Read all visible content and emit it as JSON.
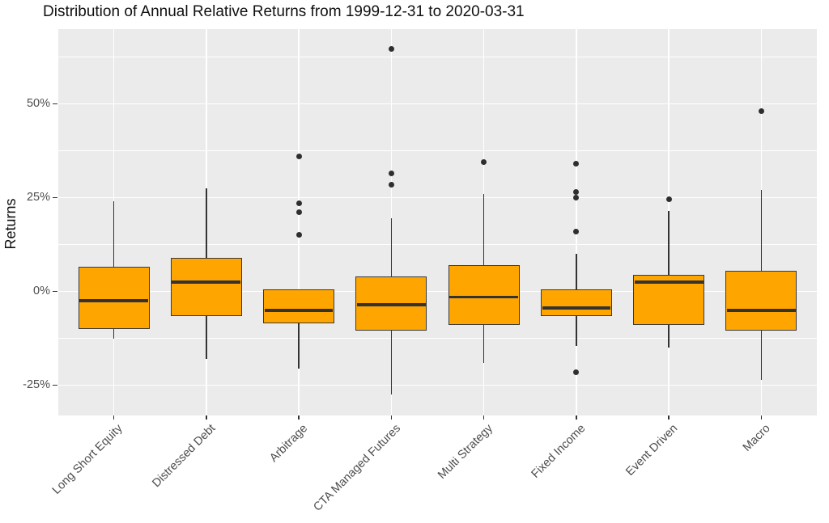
{
  "chart_data": {
    "type": "boxplot",
    "title": "Distribution of Annual Relative Returns from 1999-12-31 to 2020-03-31",
    "xlabel": "",
    "ylabel": "Returns",
    "ylim": [
      -33,
      70
    ],
    "grid": "on",
    "legend": "none",
    "yticks": [
      {
        "value": 50,
        "label": "50%"
      },
      {
        "value": 25,
        "label": "25%"
      },
      {
        "value": 0,
        "label": "0%"
      },
      {
        "value": -25,
        "label": "-25%"
      }
    ],
    "minor_gridline_values": [
      62.5,
      37.5,
      12.5,
      -12.5
    ],
    "categories": [
      "Long Short Equity",
      "Distressed Debt",
      "Arbitrage",
      "CTA Managed Futures",
      "Multi Strategy",
      "Fixed Income",
      "Event Driven",
      "Macro"
    ],
    "series": [
      {
        "category": "Long Short Equity",
        "whisker_low": -12.5,
        "q1": -10,
        "median": -2.5,
        "q3": 6.5,
        "whisker_high": 24,
        "outliers": []
      },
      {
        "category": "Distressed Debt",
        "whisker_low": -18,
        "q1": -6.5,
        "median": 2.5,
        "q3": 9,
        "whisker_high": 27.5,
        "outliers": []
      },
      {
        "category": "Arbitrage",
        "whisker_low": -20.5,
        "q1": -8.5,
        "median": -5,
        "q3": 0.5,
        "whisker_high": 0.5,
        "outliers": [
          15,
          21,
          23.5,
          36
        ]
      },
      {
        "category": "CTA Managed Futures",
        "whisker_low": -27.5,
        "q1": -10.5,
        "median": -3.5,
        "q3": 4,
        "whisker_high": 19.5,
        "outliers": [
          28.5,
          31.5,
          64.5
        ]
      },
      {
        "category": "Multi Strategy",
        "whisker_low": -19,
        "q1": -9,
        "median": -1.5,
        "q3": 7,
        "whisker_high": 26,
        "outliers": [
          34.5
        ]
      },
      {
        "category": "Fixed Income",
        "whisker_low": -14.5,
        "q1": -6.5,
        "median": -4.5,
        "q3": 0.5,
        "whisker_high": 10,
        "outliers": [
          -21.5,
          16,
          25,
          26.5,
          34
        ]
      },
      {
        "category": "Event Driven",
        "whisker_low": -15,
        "q1": -9,
        "median": 2.5,
        "q3": 4.5,
        "whisker_high": 21.5,
        "outliers": [
          24.5
        ]
      },
      {
        "category": "Macro",
        "whisker_low": -23.5,
        "q1": -10.5,
        "median": -5,
        "q3": 5.5,
        "whisker_high": 27,
        "outliers": [
          48
        ]
      }
    ],
    "colors": {
      "box_fill": "#FFA500",
      "box_stroke": "#333333",
      "panel_background": "#EBEBEB",
      "gridline": "#FFFFFF",
      "tick_text": "#4D4D4D",
      "title_text": "#111111"
    }
  }
}
